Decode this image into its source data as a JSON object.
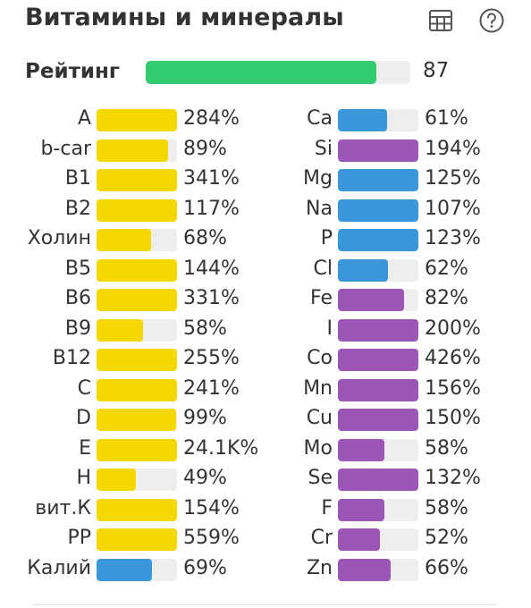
{
  "header": {
    "title": "Витамины и минералы",
    "table_icon": "table-grid-icon",
    "help_icon": "question-circle-icon"
  },
  "rating": {
    "label": "Рейтинг",
    "value": "87",
    "fraction": 0.87
  },
  "colors": {
    "rating": "#33cc70",
    "yellow": "#f5d800",
    "blue": "#3a97da",
    "purple": "#9b56b8",
    "track": "#eeeeef"
  },
  "vitamins": [
    {
      "name": "A",
      "value": "284%",
      "fill": 1.0,
      "color": "yellow"
    },
    {
      "name": "b-car",
      "value": "89%",
      "fill": 0.89,
      "color": "yellow"
    },
    {
      "name": "B1",
      "value": "341%",
      "fill": 1.0,
      "color": "yellow"
    },
    {
      "name": "B2",
      "value": "117%",
      "fill": 1.0,
      "color": "yellow"
    },
    {
      "name": "Холин",
      "value": "68%",
      "fill": 0.68,
      "color": "yellow"
    },
    {
      "name": "B5",
      "value": "144%",
      "fill": 1.0,
      "color": "yellow"
    },
    {
      "name": "B6",
      "value": "331%",
      "fill": 1.0,
      "color": "yellow"
    },
    {
      "name": "B9",
      "value": "58%",
      "fill": 0.58,
      "color": "yellow"
    },
    {
      "name": "B12",
      "value": "255%",
      "fill": 1.0,
      "color": "yellow"
    },
    {
      "name": "C",
      "value": "241%",
      "fill": 1.0,
      "color": "yellow"
    },
    {
      "name": "D",
      "value": "99%",
      "fill": 0.99,
      "color": "yellow"
    },
    {
      "name": "E",
      "value": "24.1K%",
      "fill": 1.0,
      "color": "yellow"
    },
    {
      "name": "H",
      "value": "49%",
      "fill": 0.49,
      "color": "yellow"
    },
    {
      "name": "вит.К",
      "value": "154%",
      "fill": 1.0,
      "color": "yellow"
    },
    {
      "name": "PP",
      "value": "559%",
      "fill": 1.0,
      "color": "yellow"
    },
    {
      "name": "Калий",
      "value": "69%",
      "fill": 0.69,
      "color": "blue"
    }
  ],
  "minerals": [
    {
      "name": "Ca",
      "value": "61%",
      "fill": 0.61,
      "color": "blue"
    },
    {
      "name": "Si",
      "value": "194%",
      "fill": 1.0,
      "color": "purple"
    },
    {
      "name": "Mg",
      "value": "125%",
      "fill": 1.0,
      "color": "blue"
    },
    {
      "name": "Na",
      "value": "107%",
      "fill": 1.0,
      "color": "blue"
    },
    {
      "name": "P",
      "value": "123%",
      "fill": 1.0,
      "color": "blue"
    },
    {
      "name": "Cl",
      "value": "62%",
      "fill": 0.62,
      "color": "blue"
    },
    {
      "name": "Fe",
      "value": "82%",
      "fill": 0.82,
      "color": "purple"
    },
    {
      "name": "I",
      "value": "200%",
      "fill": 1.0,
      "color": "purple"
    },
    {
      "name": "Co",
      "value": "426%",
      "fill": 1.0,
      "color": "purple"
    },
    {
      "name": "Mn",
      "value": "156%",
      "fill": 1.0,
      "color": "purple"
    },
    {
      "name": "Cu",
      "value": "150%",
      "fill": 1.0,
      "color": "purple"
    },
    {
      "name": "Mo",
      "value": "58%",
      "fill": 0.58,
      "color": "purple"
    },
    {
      "name": "Se",
      "value": "132%",
      "fill": 1.0,
      "color": "purple"
    },
    {
      "name": "F",
      "value": "58%",
      "fill": 0.58,
      "color": "purple"
    },
    {
      "name": "Cr",
      "value": "52%",
      "fill": 0.52,
      "color": "purple"
    },
    {
      "name": "Zn",
      "value": "66%",
      "fill": 0.66,
      "color": "purple"
    }
  ]
}
